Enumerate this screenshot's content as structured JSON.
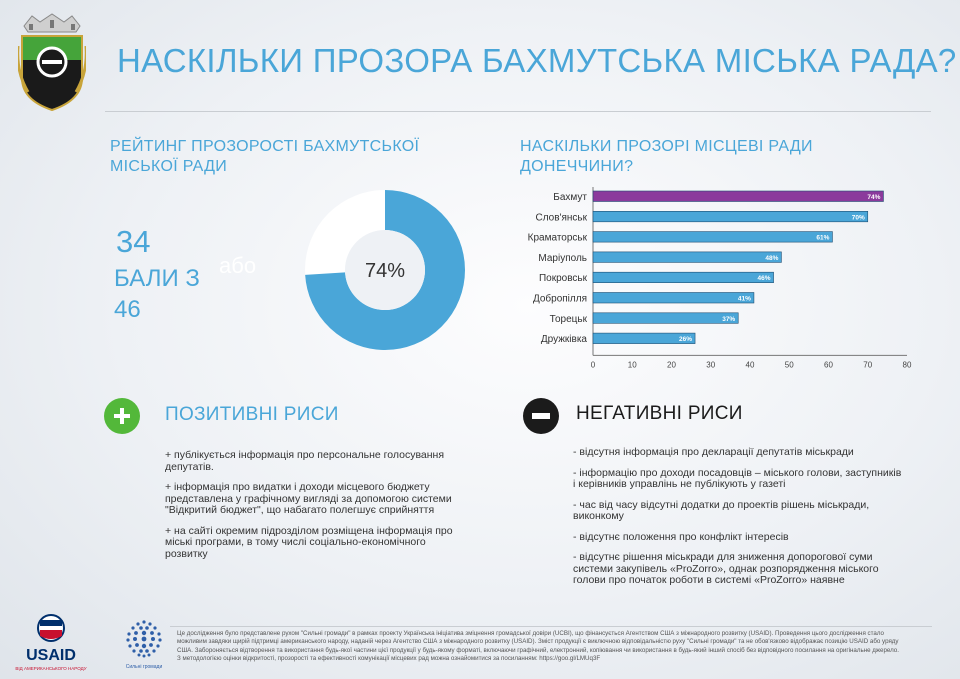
{
  "title": "НАСКІЛЬКИ ПРОЗОРА БАХМУТСЬКА МІСЬКА РАДА?",
  "rating": {
    "title_line1": "РЕЙТИНГ ПРОЗОРОСТІ БАХМУТСЬКОЇ",
    "title_line2": "МІСЬКОЇ РАДИ",
    "score": "34",
    "points_label": "БАЛИ З",
    "max": "46",
    "or_label": "або",
    "percent_label": "74%",
    "percent_value": 74
  },
  "councils": {
    "title_line1": "НАСКІЛЬКИ ПРОЗОРІ МІСЦЕВІ РАДИ",
    "title_line2": "ДОНЕЧЧИНИ?"
  },
  "chart_data": {
    "type": "bar",
    "orientation": "horizontal",
    "title": "НАСКІЛЬКИ ПРОЗОРІ МІСЦЕВІ РАДИ ДОНЕЧЧИНИ?",
    "categories": [
      "Бахмут",
      "Слов'янськ",
      "Краматорськ",
      "Маріуполь",
      "Покровськ",
      "Добропілля",
      "Торецьк",
      "Дружківка"
    ],
    "values": [
      74,
      70,
      61,
      48,
      46,
      41,
      37,
      26
    ],
    "value_labels": [
      "74%",
      "70%",
      "61%",
      "48%",
      "46%",
      "41%",
      "37%",
      "26%"
    ],
    "highlight": "Бахмут",
    "xlim": [
      0,
      80
    ],
    "xticks": [
      "0",
      "10",
      "20",
      "30",
      "40",
      "50",
      "60",
      "70",
      "80"
    ],
    "colors": {
      "default": "#4aa6d8",
      "highlight": "#8b3a9c"
    }
  },
  "positive": {
    "title": "ПОЗИТИВНІ РИСИ",
    "items": [
      "+ публікується інформація про персональне голосування депутатів.",
      "+ інформація про видатки і доходи місцевого бюджету представлена у графічному вигляді за допомогою системи \"Відкритий бюджет\", що набагато полегшує сприйняття",
      "+ на сайті окремим підрозділом розміщена інформація про міські програми, в тому числі соціально-економічного розвитку"
    ]
  },
  "negative": {
    "title": "НЕГАТИВНІ РИСИ",
    "items": [
      "- відсутня інформація про декларації депутатів міськради",
      "- інформацію про доходи посадовців – міського голови, заступників і керівників управлінь не публікують у газеті",
      "- час від часу відсутні додатки до проектів рішень міськради, виконкому",
      "- відсутнє положення про конфлікт інтересів",
      "- відсутнє рішення міськради для зниження допорогової суми системи закупівель «ProZorro», однак розпорядження міського голови про початок роботи в системі «ProZorro» наявне"
    ]
  },
  "footer": {
    "line1": "Це дослідження було представлене рухом \"Сильні громади\" в рамках проекту Українська ініціатива зміцнення громадської довіри (UCBI), що фінансується Агентством США з міжнародного розвитку (USAID). Проведення цього дослідження стало",
    "line2": "можливим завдяки щирій підтримці американського народу, наданій через Агентство США з міжнародного розвитку (USAID). Зміст продукції є виключною відповідальністю руху \"Сильні громади\" та не обов'язково відображає позицію USAID або уряду",
    "line3": "США. Забороняється відтворення та використання будь-якої частини цієї продукції у будь-якому форматі, включаючи графічний, електронний, копіювання чи використання в будь-який інший спосіб без відповідного посилання на оригінальне джерело.",
    "line4": "З методологією оцінки відкритості, прозорості та ефективності комунікації місцевих рад можна ознайомитися за посиланням: https://goo.gl/LMUq3F"
  },
  "logos": {
    "usaid": "USAID",
    "usaid_sub": "ВІД АМЕРИКАНСЬКОГО НАРОДУ",
    "sylni": "Сильні громади"
  },
  "colors": {
    "accent": "#4aa6d8",
    "highlight": "#8b3a9c",
    "positive": "#53b83a",
    "negative": "#1b1b1b",
    "usaid_red": "#c8102e",
    "usaid_blue": "#002f6c"
  }
}
